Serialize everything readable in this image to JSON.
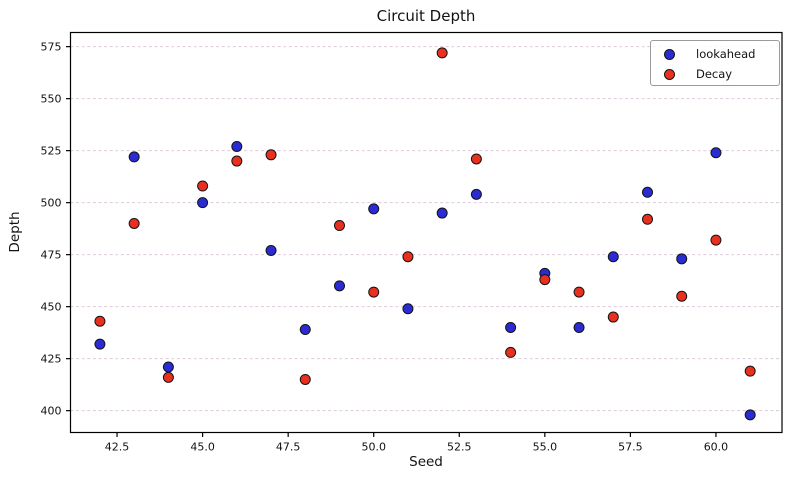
{
  "chart_data": {
    "type": "scatter",
    "title": "Circuit Depth",
    "xlabel": "Seed",
    "ylabel": "Depth",
    "x": [
      42,
      43,
      44,
      45,
      46,
      47,
      48,
      49,
      50,
      51,
      52,
      53,
      54,
      55,
      56,
      57,
      58,
      59,
      60,
      61
    ],
    "series": [
      {
        "name": "lookahead",
        "color": "#2b2bd5",
        "values": [
          432,
          522,
          421,
          500,
          527,
          477,
          439,
          460,
          497,
          449,
          495,
          504,
          440,
          466,
          440,
          474,
          505,
          473,
          524,
          398
        ]
      },
      {
        "name": "Decay",
        "color": "#e9301f",
        "values": [
          443,
          490,
          416,
          508,
          520,
          523,
          415,
          489,
          457,
          474,
          572,
          521,
          428,
          463,
          457,
          445,
          492,
          455,
          482,
          419
        ]
      }
    ],
    "xlim": [
      41.14,
      61.93
    ],
    "ylim": [
      389.5,
      581.8
    ],
    "xticks": [
      42.5,
      45.0,
      47.5,
      50.0,
      52.5,
      55.0,
      57.5,
      60.0
    ],
    "yticks": [
      400,
      425,
      450,
      475,
      500,
      525,
      550,
      575
    ],
    "grid": "horizontal-dashed",
    "grid_color": "#dcc9dc",
    "spine_color": "#000000",
    "marker_size": 5,
    "marker_edge_color": "#141414",
    "legend_position": "upper-right"
  }
}
